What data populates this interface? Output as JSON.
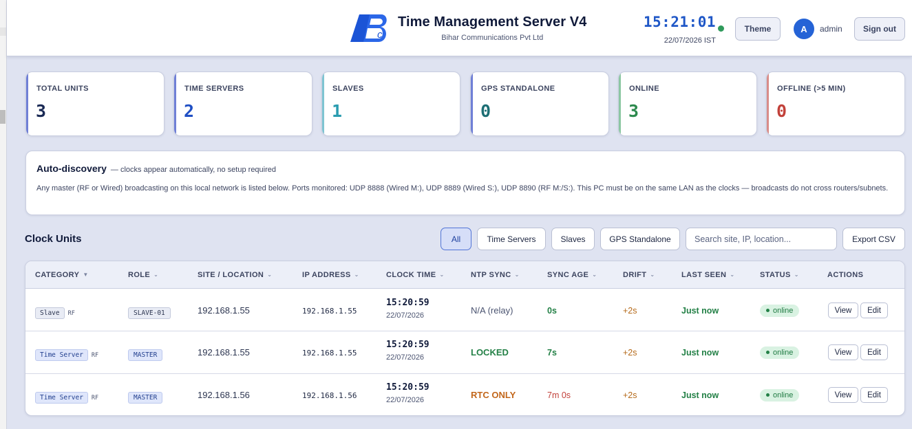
{
  "header": {
    "title": "Time Management Server V4",
    "company": "Bihar Communications Pvt Ltd",
    "clock_time": "15:21:01",
    "clock_date": "22/07/2026 IST",
    "theme_label": "Theme",
    "avatar_initial": "A",
    "user": "admin",
    "signout_label": "Sign out"
  },
  "stats": [
    {
      "label": "TOTAL UNITS",
      "value": "3",
      "color": "#1a2a55"
    },
    {
      "label": "TIME SERVERS",
      "value": "2",
      "color": "#1f4fc4"
    },
    {
      "label": "SLAVES",
      "value": "1",
      "color": "#2a9cb0"
    },
    {
      "label": "GPS STANDALONE",
      "value": "0",
      "color": "#1c6e74"
    },
    {
      "label": "ONLINE",
      "value": "3",
      "color": "#2d8a4e"
    },
    {
      "label": "OFFLINE (>5 MIN)",
      "value": "0",
      "color": "#c2413a"
    }
  ],
  "discovery": {
    "title": "Auto-discovery",
    "note": "— clocks appear automatically, no setup required",
    "body": "Any master (RF or Wired) broadcasting on this local network is listed below. Ports monitored: UDP 8888 (Wired M:), UDP 8889 (Wired S:), UDP 8890 (RF M:/S:). This PC must be on the same LAN as the clocks — broadcasts do not cross routers/subnets."
  },
  "units": {
    "title": "Clock Units",
    "filters": [
      "All",
      "Time Servers",
      "Slaves",
      "GPS Standalone"
    ],
    "active_filter": "All",
    "search_placeholder": "Search site, IP, location...",
    "export_label": "Export CSV",
    "columns": [
      "CATEGORY",
      "ROLE",
      "SITE / LOCATION",
      "IP ADDRESS",
      "CLOCK TIME",
      "NTP SYNC",
      "SYNC AGE",
      "DRIFT",
      "LAST SEEN",
      "STATUS",
      "ACTIONS"
    ],
    "rows": [
      {
        "category": "Slave",
        "link": "RF",
        "role": "SLAVE-01",
        "site": "192.168.1.55",
        "ip": "192.168.1.55",
        "time": "15:20:59",
        "date": "22/07/2026",
        "ntp": "N/A (relay)",
        "ntp_color": "#4a5370",
        "age": "0s",
        "age_color": "#238046",
        "drift": "+2s",
        "seen": "Just now",
        "status": "online"
      },
      {
        "category": "Time Server",
        "link": "RF",
        "role": "MASTER",
        "site": "192.168.1.55",
        "ip": "192.168.1.55",
        "time": "15:20:59",
        "date": "22/07/2026",
        "ntp": "LOCKED",
        "ntp_color": "#238046",
        "age": "7s",
        "age_color": "#238046",
        "drift": "+2s",
        "seen": "Just now",
        "status": "online"
      },
      {
        "category": "Time Server",
        "link": "RF",
        "role": "MASTER",
        "site": "192.168.1.56",
        "ip": "192.168.1.56",
        "time": "15:20:59",
        "date": "22/07/2026",
        "ntp": "RTC ONLY",
        "ntp_color": "#c2661a",
        "age": "7m 0s",
        "age_color": "#c2413a",
        "drift": "+2s",
        "seen": "Just now",
        "status": "online"
      }
    ],
    "view_label": "View",
    "edit_label": "Edit"
  }
}
